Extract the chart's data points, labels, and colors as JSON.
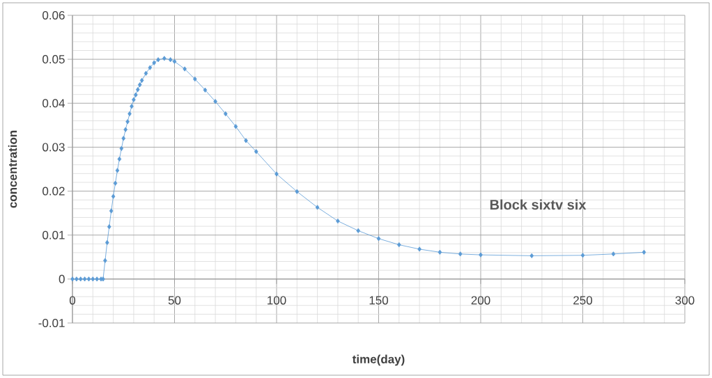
{
  "chart_data": {
    "type": "line",
    "xlabel": "time(day)",
    "ylabel": "concentration",
    "annotations": [
      "Block sixtv six"
    ],
    "x": [
      0,
      2,
      4,
      6,
      8,
      10,
      12,
      14,
      15,
      16,
      17,
      18,
      19,
      20,
      21,
      22,
      23,
      24,
      25,
      26,
      27,
      28,
      29,
      30,
      31,
      32,
      33,
      34,
      36,
      38,
      40,
      42,
      45,
      48,
      50,
      55,
      60,
      65,
      70,
      75,
      80,
      85,
      90,
      100,
      110,
      120,
      130,
      140,
      150,
      160,
      170,
      180,
      190,
      200,
      225,
      250,
      265,
      280
    ],
    "values": [
      0,
      0,
      0,
      0,
      0,
      0,
      0,
      0,
      0,
      0.0042,
      0.0083,
      0.0119,
      0.0155,
      0.0188,
      0.0218,
      0.0247,
      0.0273,
      0.0297,
      0.032,
      0.034,
      0.0358,
      0.0376,
      0.0393,
      0.0408,
      0.0419,
      0.0431,
      0.0442,
      0.0452,
      0.0468,
      0.0481,
      0.0492,
      0.0499,
      0.0502,
      0.0499,
      0.0495,
      0.0478,
      0.0455,
      0.043,
      0.0404,
      0.0376,
      0.0347,
      0.0315,
      0.029,
      0.0239,
      0.0199,
      0.0163,
      0.0132,
      0.011,
      0.0092,
      0.0078,
      0.0068,
      0.0061,
      0.0057,
      0.0055,
      0.0053,
      0.0054,
      0.0057,
      0.0061
    ],
    "color": "#5b9bd5",
    "marker": "diamond",
    "line_style": "solid",
    "xlim": [
      0,
      300
    ],
    "ylim": [
      -0.01,
      0.06
    ],
    "xticks": [
      0,
      50,
      100,
      150,
      200,
      250,
      300
    ],
    "yticks": [
      -0.01,
      0,
      0.01,
      0.02,
      0.03,
      0.04,
      0.05,
      0.06
    ],
    "grid": true
  }
}
